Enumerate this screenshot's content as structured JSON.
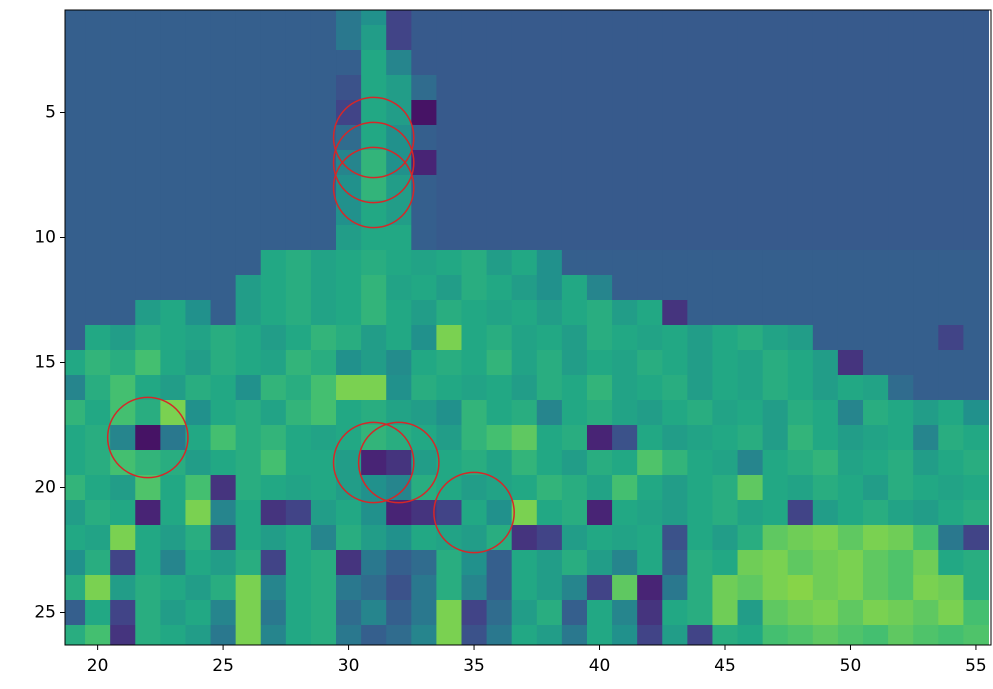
{
  "chart_data": {
    "type": "heatmap",
    "x": [
      19,
      20,
      21,
      22,
      23,
      24,
      25,
      26,
      27,
      28,
      29,
      30,
      31,
      32,
      33,
      34,
      35,
      36,
      37,
      38,
      39,
      40,
      41,
      42,
      43,
      44,
      45,
      46,
      47,
      48,
      49,
      50,
      51,
      52,
      53,
      54,
      55
    ],
    "y": [
      1,
      2,
      3,
      4,
      5,
      6,
      7,
      8,
      9,
      10,
      11,
      12,
      13,
      14,
      15,
      16,
      17,
      18,
      19,
      20,
      21,
      22,
      23,
      24,
      25,
      26
    ],
    "z": [
      [
        30,
        30,
        30,
        30,
        30,
        30,
        30,
        30,
        30,
        30,
        30,
        40,
        50,
        20,
        28,
        28,
        28,
        28,
        28,
        28,
        28,
        28,
        28,
        28,
        28,
        28,
        28,
        28,
        28,
        28,
        28,
        28,
        28,
        28,
        28,
        28,
        28
      ],
      [
        30,
        30,
        30,
        30,
        30,
        30,
        30,
        30,
        30,
        30,
        30,
        40,
        55,
        20,
        28,
        28,
        28,
        28,
        28,
        28,
        28,
        28,
        28,
        28,
        28,
        28,
        28,
        28,
        28,
        28,
        28,
        28,
        28,
        28,
        28,
        28,
        28
      ],
      [
        30,
        30,
        30,
        30,
        30,
        30,
        30,
        30,
        30,
        30,
        30,
        30,
        60,
        45,
        28,
        28,
        28,
        28,
        28,
        28,
        28,
        28,
        28,
        28,
        28,
        28,
        28,
        28,
        28,
        28,
        28,
        28,
        28,
        28,
        28,
        28,
        28
      ],
      [
        30,
        30,
        30,
        30,
        30,
        30,
        30,
        30,
        30,
        30,
        30,
        25,
        60,
        55,
        35,
        28,
        28,
        28,
        28,
        28,
        28,
        28,
        28,
        28,
        28,
        28,
        28,
        28,
        28,
        28,
        28,
        28,
        28,
        28,
        28,
        28,
        28
      ],
      [
        30,
        30,
        30,
        30,
        30,
        30,
        30,
        30,
        30,
        30,
        30,
        20,
        60,
        55,
        5,
        28,
        28,
        28,
        28,
        28,
        28,
        28,
        28,
        28,
        28,
        28,
        28,
        28,
        28,
        28,
        28,
        28,
        28,
        28,
        28,
        28,
        28
      ],
      [
        30,
        30,
        30,
        30,
        30,
        30,
        30,
        30,
        30,
        30,
        30,
        35,
        60,
        50,
        30,
        28,
        28,
        28,
        28,
        28,
        28,
        28,
        28,
        28,
        28,
        28,
        28,
        28,
        28,
        28,
        28,
        28,
        28,
        28,
        28,
        28,
        28
      ],
      [
        30,
        30,
        30,
        30,
        30,
        30,
        30,
        30,
        30,
        30,
        30,
        45,
        65,
        50,
        10,
        28,
        28,
        28,
        28,
        28,
        28,
        28,
        28,
        28,
        28,
        28,
        28,
        28,
        28,
        28,
        28,
        28,
        28,
        28,
        28,
        28,
        28
      ],
      [
        30,
        30,
        30,
        30,
        30,
        30,
        30,
        30,
        30,
        30,
        30,
        50,
        65,
        55,
        30,
        28,
        28,
        28,
        28,
        28,
        28,
        28,
        28,
        28,
        28,
        28,
        28,
        28,
        28,
        28,
        28,
        28,
        28,
        28,
        28,
        28,
        28
      ],
      [
        30,
        30,
        30,
        30,
        30,
        30,
        30,
        30,
        30,
        30,
        30,
        50,
        60,
        55,
        30,
        28,
        28,
        28,
        28,
        28,
        28,
        28,
        28,
        28,
        28,
        28,
        28,
        28,
        28,
        28,
        28,
        28,
        28,
        28,
        28,
        28,
        28
      ],
      [
        30,
        30,
        30,
        30,
        30,
        30,
        30,
        30,
        30,
        30,
        30,
        55,
        60,
        60,
        30,
        28,
        28,
        28,
        28,
        28,
        28,
        28,
        28,
        28,
        28,
        28,
        28,
        28,
        28,
        28,
        28,
        28,
        28,
        28,
        28,
        28,
        28
      ],
      [
        30,
        30,
        30,
        30,
        30,
        30,
        30,
        30,
        60,
        62,
        58,
        60,
        62,
        60,
        58,
        60,
        62,
        55,
        60,
        50,
        30,
        30,
        30,
        30,
        30,
        30,
        30,
        30,
        30,
        30,
        30,
        30,
        30,
        30,
        30,
        30,
        30
      ],
      [
        30,
        30,
        30,
        30,
        30,
        30,
        30,
        55,
        60,
        62,
        58,
        60,
        65,
        58,
        60,
        55,
        62,
        60,
        55,
        50,
        60,
        45,
        30,
        30,
        30,
        30,
        30,
        30,
        30,
        30,
        30,
        30,
        30,
        30,
        30,
        30,
        30
      ],
      [
        30,
        30,
        30,
        55,
        60,
        50,
        30,
        55,
        60,
        62,
        58,
        60,
        65,
        60,
        55,
        62,
        60,
        58,
        60,
        55,
        60,
        62,
        55,
        60,
        15,
        30,
        30,
        30,
        30,
        30,
        30,
        30,
        30,
        30,
        30,
        30,
        30
      ],
      [
        30,
        60,
        55,
        62,
        60,
        58,
        62,
        60,
        55,
        60,
        65,
        62,
        55,
        60,
        50,
        80,
        60,
        62,
        58,
        60,
        55,
        62,
        60,
        58,
        60,
        55,
        60,
        62,
        58,
        55,
        30,
        30,
        30,
        30,
        30,
        20,
        30
      ],
      [
        60,
        65,
        62,
        70,
        60,
        55,
        62,
        60,
        58,
        65,
        62,
        50,
        55,
        48,
        60,
        62,
        60,
        65,
        58,
        62,
        55,
        60,
        58,
        62,
        60,
        55,
        60,
        58,
        62,
        60,
        55,
        15,
        30,
        30,
        30,
        30,
        30
      ],
      [
        45,
        62,
        70,
        60,
        55,
        62,
        60,
        50,
        65,
        62,
        70,
        80,
        80,
        50,
        62,
        60,
        58,
        60,
        55,
        62,
        60,
        65,
        58,
        60,
        62,
        55,
        60,
        58,
        62,
        60,
        55,
        60,
        58,
        35,
        30,
        30,
        30
      ],
      [
        65,
        60,
        70,
        62,
        80,
        50,
        60,
        62,
        58,
        65,
        70,
        60,
        62,
        58,
        55,
        50,
        65,
        60,
        62,
        45,
        60,
        62,
        58,
        55,
        60,
        62,
        58,
        60,
        55,
        62,
        60,
        45,
        62,
        60,
        55,
        60,
        50
      ],
      [
        60,
        62,
        45,
        5,
        40,
        60,
        70,
        62,
        65,
        60,
        58,
        60,
        65,
        62,
        60,
        55,
        65,
        70,
        75,
        60,
        62,
        10,
        25,
        60,
        55,
        58,
        60,
        62,
        55,
        65,
        60,
        55,
        58,
        60,
        45,
        62,
        60
      ],
      [
        60,
        62,
        70,
        65,
        62,
        55,
        60,
        62,
        70,
        60,
        60,
        55,
        10,
        15,
        55,
        60,
        62,
        58,
        65,
        60,
        55,
        62,
        60,
        72,
        65,
        60,
        58,
        45,
        60,
        62,
        65,
        58,
        60,
        62,
        55,
        60,
        62
      ],
      [
        65,
        60,
        55,
        72,
        60,
        70,
        15,
        62,
        60,
        58,
        60,
        55,
        50,
        45,
        62,
        60,
        55,
        58,
        60,
        65,
        62,
        58,
        70,
        60,
        55,
        60,
        62,
        75,
        60,
        58,
        62,
        60,
        55,
        62,
        60,
        58,
        60
      ],
      [
        55,
        62,
        60,
        10,
        60,
        80,
        45,
        60,
        15,
        20,
        55,
        60,
        50,
        10,
        15,
        20,
        60,
        50,
        80,
        60,
        62,
        10,
        60,
        58,
        55,
        60,
        62,
        58,
        60,
        20,
        55,
        60,
        62,
        58,
        55,
        60,
        62
      ],
      [
        60,
        58,
        80,
        60,
        55,
        62,
        20,
        60,
        55,
        60,
        45,
        62,
        55,
        50,
        60,
        58,
        55,
        62,
        15,
        20,
        55,
        60,
        58,
        60,
        25,
        60,
        55,
        62,
        75,
        78,
        80,
        75,
        80,
        78,
        70,
        40,
        20
      ],
      [
        50,
        62,
        20,
        60,
        45,
        60,
        55,
        62,
        20,
        60,
        62,
        15,
        40,
        30,
        35,
        62,
        50,
        30,
        60,
        55,
        62,
        55,
        45,
        60,
        30,
        62,
        60,
        78,
        80,
        75,
        78,
        80,
        75,
        72,
        78,
        60,
        62
      ],
      [
        62,
        80,
        55,
        62,
        60,
        55,
        62,
        80,
        45,
        60,
        62,
        40,
        35,
        25,
        40,
        62,
        45,
        30,
        60,
        55,
        45,
        20,
        75,
        10,
        40,
        62,
        78,
        75,
        80,
        82,
        78,
        80,
        75,
        72,
        80,
        78,
        62
      ],
      [
        30,
        60,
        20,
        62,
        55,
        60,
        45,
        80,
        40,
        60,
        62,
        35,
        45,
        30,
        40,
        80,
        20,
        35,
        55,
        62,
        30,
        60,
        45,
        15,
        60,
        62,
        78,
        55,
        75,
        78,
        80,
        75,
        80,
        78,
        75,
        80,
        70
      ],
      [
        62,
        70,
        15,
        62,
        60,
        55,
        40,
        80,
        45,
        60,
        62,
        40,
        30,
        35,
        45,
        80,
        25,
        40,
        60,
        55,
        40,
        60,
        50,
        20,
        55,
        20,
        62,
        60,
        70,
        72,
        75,
        72,
        70,
        75,
        72,
        70,
        72
      ]
    ],
    "clim": [
      0,
      100
    ],
    "colormap": "viridis",
    "xlim": [
      18.7,
      55.6
    ],
    "ylim": [
      26.3,
      0.9
    ],
    "xticks": [
      20,
      25,
      30,
      35,
      40,
      45,
      50,
      55
    ],
    "yticks": [
      5,
      10,
      15,
      20,
      25
    ],
    "circles": {
      "x": [
        31,
        31,
        31,
        22,
        31,
        32,
        35
      ],
      "y": [
        6,
        7,
        8,
        18,
        19,
        19,
        21
      ],
      "radius": 1.6,
      "color": "#d62728"
    }
  }
}
